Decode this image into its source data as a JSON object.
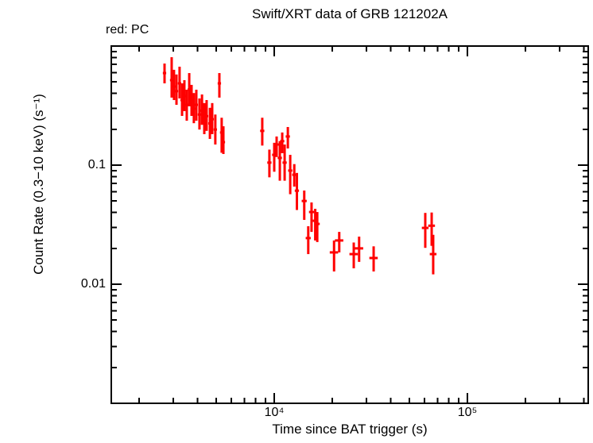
{
  "chart_data": {
    "type": "scatter",
    "title": "Swift/XRT data of GRB 121202A",
    "mode_label": "red: PC",
    "xlabel": "Time since BAT trigger (s)",
    "ylabel": "Count Rate (0.3−10 keV) (s⁻¹)",
    "xscale": "log",
    "yscale": "log",
    "xlim": [
      1434,
      422000
    ],
    "ylim": [
      0.001,
      1.0
    ],
    "grid": false,
    "legend": "none",
    "x_major_ticks": [
      {
        "value": 10000,
        "label": "10⁴"
      },
      {
        "value": 100000,
        "label": "10⁵"
      }
    ],
    "y_major_ticks": [
      {
        "value": 0.1,
        "label": "0.1"
      },
      {
        "value": 0.01,
        "label": "0.01"
      }
    ],
    "series": [
      {
        "name": "PC",
        "color": "#ff0000",
        "marker": "error-bar-cross",
        "points": [
          {
            "t": 2705,
            "terr": 0.02,
            "rate": 0.593,
            "rate_lo": 0.486,
            "rate_hi": 0.713
          },
          {
            "t": 2945,
            "terr": 0.02,
            "rate": 0.517,
            "rate_lo": 0.369,
            "rate_hi": 0.806
          },
          {
            "t": 3028,
            "terr": 0.02,
            "rate": 0.457,
            "rate_lo": 0.352,
            "rate_hi": 0.632
          },
          {
            "t": 3119,
            "terr": 0.02,
            "rate": 0.418,
            "rate_lo": 0.321,
            "rate_hi": 0.577
          },
          {
            "t": 3236,
            "terr": 0.02,
            "rate": 0.486,
            "rate_lo": 0.363,
            "rate_hi": 0.671
          },
          {
            "t": 3333,
            "terr": 0.02,
            "rate": 0.352,
            "rate_lo": 0.259,
            "rate_hi": 0.486
          },
          {
            "t": 3427,
            "terr": 0.02,
            "rate": 0.381,
            "rate_lo": 0.284,
            "rate_hi": 0.517
          },
          {
            "t": 3526,
            "terr": 0.02,
            "rate": 0.321,
            "rate_lo": 0.236,
            "rate_hi": 0.43
          },
          {
            "t": 3631,
            "terr": 0.02,
            "rate": 0.431,
            "rate_lo": 0.312,
            "rate_hi": 0.593
          },
          {
            "t": 3733,
            "terr": 0.02,
            "rate": 0.352,
            "rate_lo": 0.259,
            "rate_hi": 0.472
          },
          {
            "t": 3837,
            "terr": 0.02,
            "rate": 0.298,
            "rate_lo": 0.225,
            "rate_hi": 0.403
          },
          {
            "t": 3951,
            "terr": 0.02,
            "rate": 0.321,
            "rate_lo": 0.236,
            "rate_hi": 0.43
          },
          {
            "t": 4102,
            "terr": 0.02,
            "rate": 0.266,
            "rate_lo": 0.199,
            "rate_hi": 0.363
          },
          {
            "t": 4227,
            "terr": 0.02,
            "rate": 0.287,
            "rate_lo": 0.218,
            "rate_hi": 0.392
          },
          {
            "t": 4345,
            "terr": 0.02,
            "rate": 0.243,
            "rate_lo": 0.182,
            "rate_hi": 0.332
          },
          {
            "t": 4467,
            "terr": 0.02,
            "rate": 0.258,
            "rate_lo": 0.194,
            "rate_hi": 0.352
          },
          {
            "t": 4645,
            "terr": 0.02,
            "rate": 0.224,
            "rate_lo": 0.166,
            "rate_hi": 0.303
          },
          {
            "t": 4775,
            "terr": 0.02,
            "rate": 0.243,
            "rate_lo": 0.182,
            "rate_hi": 0.332
          },
          {
            "t": 4955,
            "terr": 0.02,
            "rate": 0.199,
            "rate_lo": 0.149,
            "rate_hi": 0.266
          },
          {
            "t": 5200,
            "terr": 0.02,
            "rate": 0.486,
            "rate_lo": 0.369,
            "rate_hi": 0.593
          },
          {
            "t": 5345,
            "terr": 0.02,
            "rate": 0.188,
            "rate_lo": 0.127,
            "rate_hi": 0.25
          },
          {
            "t": 5455,
            "terr": 0.02,
            "rate": 0.156,
            "rate_lo": 0.124,
            "rate_hi": 0.212
          },
          {
            "t": 8670,
            "terr": 0.025,
            "rate": 0.194,
            "rate_lo": 0.146,
            "rate_hi": 0.25
          },
          {
            "t": 9440,
            "terr": 0.025,
            "rate": 0.105,
            "rate_lo": 0.079,
            "rate_hi": 0.135
          },
          {
            "t": 10000,
            "terr": 0.025,
            "rate": 0.122,
            "rate_lo": 0.088,
            "rate_hi": 0.154
          },
          {
            "t": 10290,
            "terr": 0.025,
            "rate": 0.149,
            "rate_lo": 0.117,
            "rate_hi": 0.174
          },
          {
            "t": 10690,
            "terr": 0.025,
            "rate": 0.115,
            "rate_lo": 0.074,
            "rate_hi": 0.159
          },
          {
            "t": 11000,
            "terr": 0.025,
            "rate": 0.159,
            "rate_lo": 0.126,
            "rate_hi": 0.188
          },
          {
            "t": 11320,
            "terr": 0.025,
            "rate": 0.105,
            "rate_lo": 0.074,
            "rate_hi": 0.149
          },
          {
            "t": 11760,
            "terr": 0.025,
            "rate": 0.174,
            "rate_lo": 0.138,
            "rate_hi": 0.209
          },
          {
            "t": 12100,
            "terr": 0.025,
            "rate": 0.09,
            "rate_lo": 0.057,
            "rate_hi": 0.122
          },
          {
            "t": 12700,
            "terr": 0.025,
            "rate": 0.083,
            "rate_lo": 0.066,
            "rate_hi": 0.102
          },
          {
            "t": 13100,
            "terr": 0.025,
            "rate": 0.061,
            "rate_lo": 0.042,
            "rate_hi": 0.086
          },
          {
            "t": 14300,
            "terr": 0.03,
            "rate": 0.05,
            "rate_lo": 0.0347,
            "rate_hi": 0.0612
          },
          {
            "t": 15000,
            "terr": 0.03,
            "rate": 0.0244,
            "rate_lo": 0.0179,
            "rate_hi": 0.0307
          },
          {
            "t": 15600,
            "terr": 0.03,
            "rate": 0.0404,
            "rate_lo": 0.0275,
            "rate_hi": 0.0486
          },
          {
            "t": 16300,
            "terr": 0.03,
            "rate": 0.0341,
            "rate_lo": 0.0233,
            "rate_hi": 0.043
          },
          {
            "t": 16700,
            "terr": 0.03,
            "rate": 0.0321,
            "rate_lo": 0.0226,
            "rate_hi": 0.0404
          },
          {
            "t": 20400,
            "terr": 0.05,
            "rate": 0.0185,
            "rate_lo": 0.0128,
            "rate_hi": 0.0233
          },
          {
            "t": 21700,
            "terr": 0.05,
            "rate": 0.0233,
            "rate_lo": 0.0185,
            "rate_hi": 0.0275
          },
          {
            "t": 25800,
            "terr": 0.05,
            "rate": 0.0179,
            "rate_lo": 0.0136,
            "rate_hi": 0.0224
          },
          {
            "t": 27500,
            "terr": 0.05,
            "rate": 0.02,
            "rate_lo": 0.0154,
            "rate_hi": 0.0251
          },
          {
            "t": 32700,
            "terr": 0.05,
            "rate": 0.0166,
            "rate_lo": 0.0128,
            "rate_hi": 0.0208
          },
          {
            "t": 60500,
            "terr": 0.04,
            "rate": 0.0297,
            "rate_lo": 0.0202,
            "rate_hi": 0.0397
          },
          {
            "t": 65300,
            "terr": 0.04,
            "rate": 0.031,
            "rate_lo": 0.021,
            "rate_hi": 0.04
          },
          {
            "t": 66500,
            "terr": 0.04,
            "rate": 0.0179,
            "rate_lo": 0.0121,
            "rate_hi": 0.026
          }
        ]
      }
    ]
  }
}
